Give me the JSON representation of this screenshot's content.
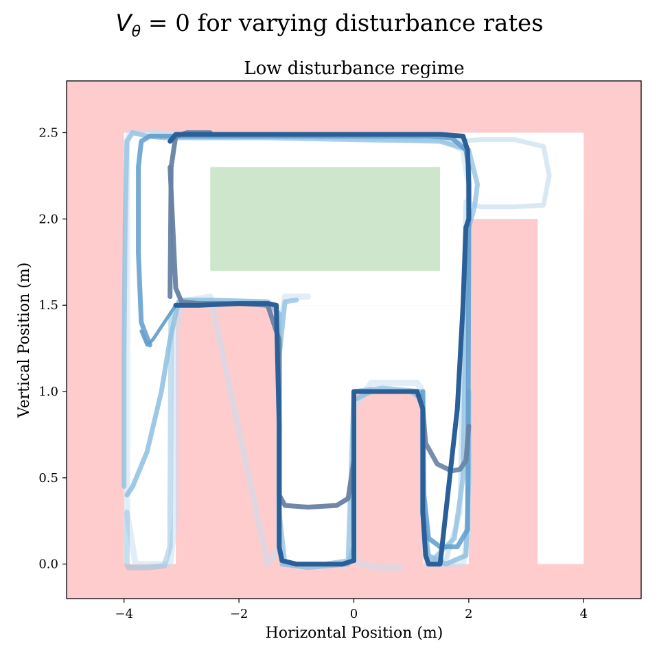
{
  "chart_data": {
    "type": "line",
    "suptitle": "V_θ = 0 for varying disturbance rates",
    "suptitle_parts": {
      "v": "V",
      "sub": "θ",
      "rest": " = 0 for varying disturbance rates"
    },
    "title": "Low disturbance regime",
    "xlabel": "Horizontal Position (m)",
    "ylabel": "Vertical Position (m)",
    "xlim": [
      -5,
      5
    ],
    "ylim": [
      -0.2,
      2.8
    ],
    "xticks": [
      -4,
      -2,
      0,
      2,
      4
    ],
    "yticks": [
      0.0,
      0.5,
      1.0,
      1.5,
      2.0,
      2.5
    ],
    "xtick_labels": [
      "−4",
      "−2",
      "0",
      "2",
      "4"
    ],
    "ytick_labels": [
      "0.0",
      "0.5",
      "1.0",
      "1.5",
      "2.0",
      "2.5"
    ],
    "grid": false,
    "colors": {
      "unsafe": "#fecccc",
      "free": "#ffffff",
      "goal": "#cde6cc",
      "traj_light": "#c8dff0",
      "traj_mid": "#8dbfe0",
      "traj_blue": "#5e9ccc",
      "traj_dark": "#2a5f97",
      "traj_slate": "#6781a3"
    },
    "regions": {
      "unsafe_area": {
        "x": [
          -5,
          5
        ],
        "y": [
          -0.2,
          2.8
        ]
      },
      "free_space": [
        {
          "x": [
            -4,
            4
          ],
          "y": [
            2.0,
            2.5
          ]
        },
        {
          "x": [
            -4,
            2
          ],
          "y": [
            1.5,
            2.5
          ]
        },
        {
          "x": [
            -4,
            -3.1
          ],
          "y": [
            0.0,
            2.5
          ]
        },
        {
          "x": [
            -1.3,
            2
          ],
          "y": [
            1.0,
            1.5
          ]
        },
        {
          "x": [
            -1.3,
            0
          ],
          "y": [
            0.0,
            1.0
          ]
        },
        {
          "x": [
            1.2,
            2
          ],
          "y": [
            0.0,
            1.0
          ]
        },
        {
          "x": [
            3.2,
            4
          ],
          "y": [
            0.0,
            2.5
          ]
        }
      ],
      "goal": {
        "x": [
          -2.5,
          1.5
        ],
        "y": [
          1.7,
          2.3
        ]
      }
    },
    "series": [
      {
        "name": "trajectory-1",
        "color": "traj_light",
        "opacity": 0.55,
        "width": 9,
        "x": [
          -0.8,
          -1.0,
          -1.2,
          -1.3,
          -1.3,
          -1.3,
          -1.5,
          -2.5,
          -3.0,
          -3.1,
          -3.1,
          -3.2,
          -3.8,
          -3.95,
          -3.95,
          -3.95,
          -3.9,
          -3.0,
          -1.5,
          0.0,
          1.5,
          1.9,
          2.0,
          2.0,
          1.9,
          1.6,
          1.3,
          1.2,
          1.2,
          1.2,
          1.1,
          0.3,
          0.0,
          0.0,
          0.0,
          0.1,
          0.4,
          0.8
        ],
        "y": [
          1.55,
          1.55,
          1.55,
          1.3,
          1.0,
          0.1,
          0.0,
          1.55,
          1.52,
          1.3,
          0.3,
          0.0,
          0.0,
          0.3,
          1.5,
          2.45,
          2.5,
          2.49,
          2.49,
          2.48,
          2.47,
          2.4,
          2.2,
          0.2,
          0.0,
          0.0,
          0.0,
          0.3,
          0.9,
          1.0,
          1.05,
          1.05,
          0.9,
          0.5,
          0.05,
          0.0,
          -0.02,
          -0.02
        ]
      },
      {
        "name": "trajectory-2",
        "color": "traj_light",
        "opacity": 0.7,
        "width": 7,
        "x": [
          -3.5,
          -3.0,
          -1.5,
          0.0,
          1.4,
          1.8,
          2.2,
          2.8,
          3.3,
          3.4,
          3.3,
          2.8,
          2.2,
          1.95,
          1.9,
          1.85,
          1.6,
          1.25,
          1.2
        ],
        "y": [
          2.5,
          2.49,
          2.48,
          2.47,
          2.46,
          2.45,
          2.46,
          2.46,
          2.42,
          2.25,
          2.08,
          2.07,
          2.07,
          2.1,
          1.5,
          0.3,
          0.02,
          0.0,
          0.3
        ]
      },
      {
        "name": "trajectory-3",
        "color": "traj_mid",
        "opacity": 0.75,
        "width": 7,
        "x": [
          -4.0,
          -4.0,
          -3.98,
          -3.95,
          -3.85,
          -3.6,
          -3.3,
          -3.15,
          -3.0,
          -2.8,
          -1.5,
          0.0,
          1.5,
          2.0,
          2.15,
          2.1,
          2.0,
          1.95,
          1.9,
          1.75,
          1.3,
          1.2,
          1.2,
          1.15,
          0.5,
          0.0,
          -0.05,
          -0.1,
          -0.5,
          -1.2,
          -1.3,
          -1.3,
          -1.2,
          -1.0
        ],
        "y": [
          0.45,
          1.2,
          2.0,
          2.45,
          2.5,
          2.48,
          2.47,
          2.47,
          2.47,
          2.47,
          2.47,
          2.46,
          2.45,
          2.4,
          2.2,
          2.07,
          1.95,
          1.5,
          0.5,
          0.15,
          0.0,
          0.3,
          0.9,
          1.0,
          1.02,
          1.0,
          0.5,
          0.02,
          0.0,
          0.0,
          0.3,
          1.2,
          1.52,
          1.53
        ]
      },
      {
        "name": "trajectory-4",
        "color": "traj_mid",
        "opacity": 0.85,
        "width": 7,
        "x": [
          -3.95,
          -3.85,
          -3.6,
          -3.35,
          -3.2,
          -3.1,
          -3.05,
          -3.0,
          -2.5,
          -1.5,
          -1.3,
          -1.3,
          -1.3,
          -1.25,
          -0.8,
          -0.1,
          0.0,
          0.0,
          0.0,
          0.3,
          1.0,
          1.2,
          1.2,
          1.3,
          1.6,
          1.95,
          2.0,
          2.0
        ],
        "y": [
          0.4,
          0.45,
          0.65,
          1.0,
          1.3,
          1.45,
          1.52,
          1.53,
          1.53,
          1.52,
          1.45,
          0.9,
          0.1,
          0.0,
          -0.02,
          0.0,
          0.1,
          0.6,
          0.95,
          1.0,
          1.0,
          0.95,
          0.3,
          0.05,
          0.0,
          0.05,
          0.5,
          1.0
        ]
      },
      {
        "name": "trajectory-5",
        "color": "traj_mid",
        "opacity": 0.5,
        "width": 8,
        "x": [
          -3.95,
          -3.95,
          -3.92,
          -3.85,
          -3.6,
          -3.3,
          -3.2,
          -3.18
        ],
        "y": [
          0.3,
          0.0,
          -0.02,
          -0.02,
          -0.02,
          -0.01,
          0.1,
          1.45
        ]
      },
      {
        "name": "trajectory-6",
        "color": "traj_blue",
        "opacity": 0.85,
        "width": 7,
        "x": [
          -3.55,
          -3.7,
          -3.75,
          -3.75,
          -3.7,
          -3.55,
          -3.1,
          -2.5,
          -1.5,
          0.0,
          1.3,
          1.7,
          1.95,
          2.0,
          2.0,
          1.98,
          1.8,
          1.5,
          1.3,
          1.22,
          1.2
        ],
        "y": [
          1.27,
          1.4,
          1.8,
          2.3,
          2.45,
          2.48,
          2.48,
          2.48,
          2.48,
          2.48,
          2.48,
          2.47,
          2.4,
          2.3,
          1.8,
          0.2,
          0.1,
          0.1,
          0.15,
          0.4,
          1.0
        ]
      },
      {
        "name": "trajectory-7",
        "color": "traj_blue",
        "opacity": 0.9,
        "width": 5,
        "x": [
          -3.1,
          -3.3,
          -3.5,
          -3.6,
          -3.7
        ],
        "y": [
          1.5,
          1.4,
          1.3,
          1.27,
          1.35
        ]
      },
      {
        "name": "trajectory-8",
        "color": "traj_slate",
        "opacity": 0.95,
        "width": 7,
        "x": [
          -3.2,
          -3.1,
          -3.0,
          -2.7,
          -2.0,
          -1.5,
          -1.3,
          -1.3,
          -1.2,
          -0.8,
          -0.3,
          -0.1,
          0.0
        ],
        "y": [
          2.3,
          1.6,
          1.52,
          1.51,
          1.51,
          1.5,
          1.3,
          0.4,
          0.34,
          0.33,
          0.34,
          0.38,
          0.6
        ]
      },
      {
        "name": "trajectory-9",
        "color": "traj_slate",
        "opacity": 0.95,
        "width": 7,
        "x": [
          -3.2,
          -3.18,
          -3.1,
          -2.9,
          -2.5
        ],
        "y": [
          1.55,
          2.3,
          2.48,
          2.5,
          2.5
        ]
      },
      {
        "name": "trajectory-10",
        "color": "traj_slate",
        "opacity": 0.9,
        "width": 7,
        "x": [
          1.2,
          1.25,
          1.45,
          1.7,
          1.85,
          1.95,
          2.0
        ],
        "y": [
          0.9,
          0.7,
          0.58,
          0.54,
          0.55,
          0.6,
          0.8
        ]
      },
      {
        "name": "trajectory-11",
        "color": "traj_dark",
        "opacity": 1.0,
        "width": 7,
        "x": [
          -3.2,
          -3.1,
          -2.0,
          0.0,
          1.5,
          1.9,
          1.98,
          2.0,
          2.0,
          1.95,
          1.9,
          1.8,
          1.5,
          1.3,
          1.25,
          1.2,
          1.2,
          1.1,
          0.5,
          0.0,
          0.0,
          0.0,
          0.0,
          -0.2,
          -1.0,
          -1.25,
          -1.3,
          -1.3,
          -1.35,
          -1.5,
          -2.0,
          -2.7,
          -3.0,
          -3.1
        ],
        "y": [
          2.45,
          2.49,
          2.49,
          2.49,
          2.49,
          2.48,
          2.4,
          2.2,
          2.0,
          1.95,
          1.5,
          0.9,
          0.0,
          0.0,
          0.05,
          0.3,
          0.9,
          1.0,
          1.0,
          1.0,
          0.5,
          0.1,
          0.02,
          0.0,
          0.0,
          0.02,
          0.1,
          0.8,
          1.5,
          1.51,
          1.51,
          1.5,
          1.5,
          1.5
        ]
      }
    ]
  }
}
